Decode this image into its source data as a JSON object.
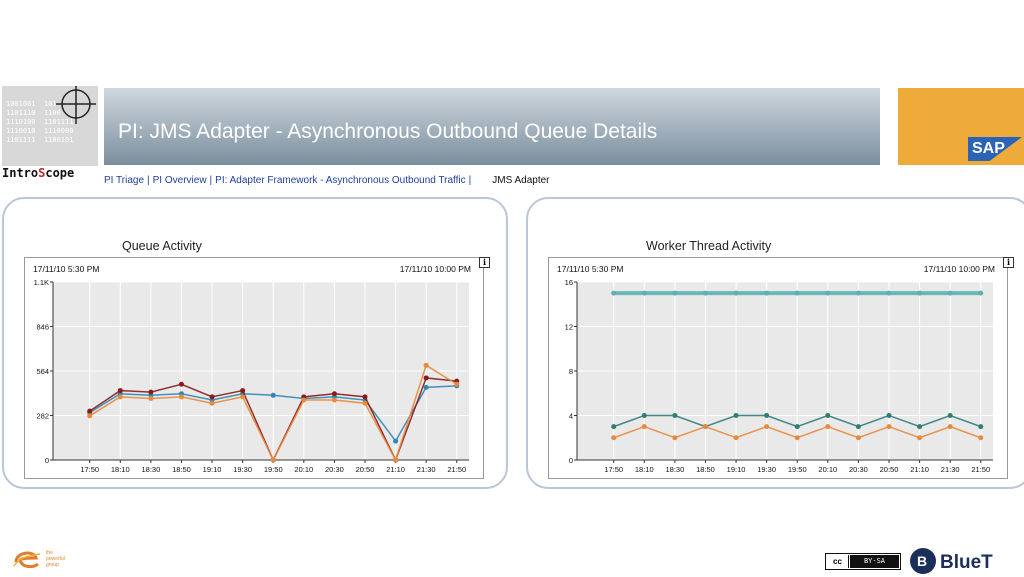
{
  "header": {
    "title": "PI: JMS Adapter - Asynchronous Outbound Queue Details",
    "logo_binary": "1001001  101\n1101110  1100\n1110100  1101111\n1110010  1110000\n1101111  1100101",
    "logo_text_a": "Intro",
    "logo_text_b": "S",
    "logo_text_c": "cope",
    "sap_logo_text": "SAP"
  },
  "breadcrumb": {
    "items": [
      "PI Triage",
      "PI Overview",
      "PI: Adapter Framework - Asynchronous Outbound Traffic"
    ],
    "separator": "|",
    "current": "JMS Adapter"
  },
  "panels": {
    "left": {
      "title": "Queue Activity",
      "start": "17/11/10 5:30 PM",
      "end": "17/11/10 10:00 PM"
    },
    "right": {
      "title": "Worker Thread Activity",
      "start": "17/11/10 5:30 PM",
      "end": "17/11/10 10:00 PM"
    }
  },
  "chart_data": [
    {
      "type": "scatter",
      "title": "Queue Activity",
      "x": [
        "17:50",
        "18:10",
        "18:30",
        "18:50",
        "19:10",
        "19:30",
        "19:50",
        "20:10",
        "20:30",
        "20:50",
        "21:10",
        "21:30",
        "21:50"
      ],
      "y_ticks": [
        "0",
        "282",
        "564",
        "846",
        "1.1K"
      ],
      "ylim": [
        0,
        1128
      ],
      "series": [
        {
          "color": "#2f86b8",
          "values": [
            300,
            420,
            410,
            420,
            380,
            420,
            410,
            390,
            400,
            380,
            120,
            460,
            470
          ]
        },
        {
          "color": "#8b1a1a",
          "values": [
            310,
            440,
            430,
            480,
            400,
            440,
            0,
            400,
            420,
            400,
            0,
            520,
            500
          ]
        },
        {
          "color": "#e88a3a",
          "values": [
            280,
            400,
            390,
            400,
            360,
            400,
            0,
            380,
            380,
            360,
            0,
            600,
            480
          ]
        }
      ]
    },
    {
      "type": "line",
      "title": "Worker Thread Activity",
      "x": [
        "17:50",
        "18:10",
        "18:30",
        "18:50",
        "19:10",
        "19:30",
        "19:50",
        "20:10",
        "20:30",
        "20:50",
        "21:10",
        "21:30",
        "21:50"
      ],
      "y_ticks": [
        "0",
        "4",
        "8",
        "12",
        "16"
      ],
      "ylim": [
        0,
        16
      ],
      "series": [
        {
          "color": "#5bb3b0",
          "values": [
            15,
            15,
            15,
            15,
            15,
            15,
            15,
            15,
            15,
            15,
            15,
            15,
            15
          ]
        },
        {
          "color": "#2e7d76",
          "values": [
            3,
            4,
            4,
            3,
            4,
            4,
            3,
            4,
            3,
            4,
            3,
            4,
            3
          ]
        },
        {
          "color": "#e88a3a",
          "values": [
            2,
            3,
            2,
            3,
            2,
            3,
            2,
            3,
            2,
            3,
            2,
            3,
            2
          ]
        }
      ]
    }
  ],
  "footer": {
    "left_logo_text": "the\npowerful\ngroup",
    "cc_left": "cc",
    "cc_right": "BY-SA",
    "bluet_mark": "B",
    "bluet_text": "BlueT"
  }
}
